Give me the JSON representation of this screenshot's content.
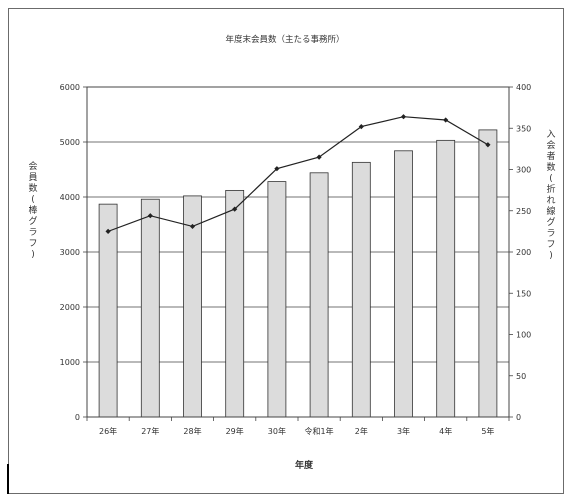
{
  "chart_data": {
    "type": "bar",
    "title": "年度末会員数（主たる事務所）",
    "xlabel": "年度",
    "ylabel_left": "会員数(棒グラフ)",
    "ylabel_right": "入会者数(折れ線グラフ)",
    "categories": [
      "26年",
      "27年",
      "28年",
      "29年",
      "30年",
      "令和1年",
      "2年",
      "3年",
      "4年",
      "5年"
    ],
    "series": [
      {
        "name": "会員数",
        "type": "bar",
        "axis": "left",
        "values": [
          3870,
          3960,
          4020,
          4120,
          4280,
          4440,
          4630,
          4840,
          5030,
          5220
        ]
      },
      {
        "name": "入会者数",
        "type": "line",
        "axis": "right",
        "values": [
          225,
          244,
          231,
          252,
          301,
          315,
          352,
          364,
          360,
          330
        ]
      }
    ],
    "ylim_left": [
      0,
      6000
    ],
    "yticks_left": [
      0,
      1000,
      2000,
      3000,
      4000,
      5000,
      6000
    ],
    "ylim_right": [
      0,
      400
    ],
    "yticks_right": [
      0,
      50,
      100,
      150,
      200,
      250,
      300,
      350,
      400
    ],
    "grid": true,
    "legend": "none",
    "colors": {
      "bar_fill": "#dcdcdc",
      "bar_stroke": "#333333",
      "line": "#222222",
      "grid": "#444444",
      "axis": "#444444"
    }
  }
}
